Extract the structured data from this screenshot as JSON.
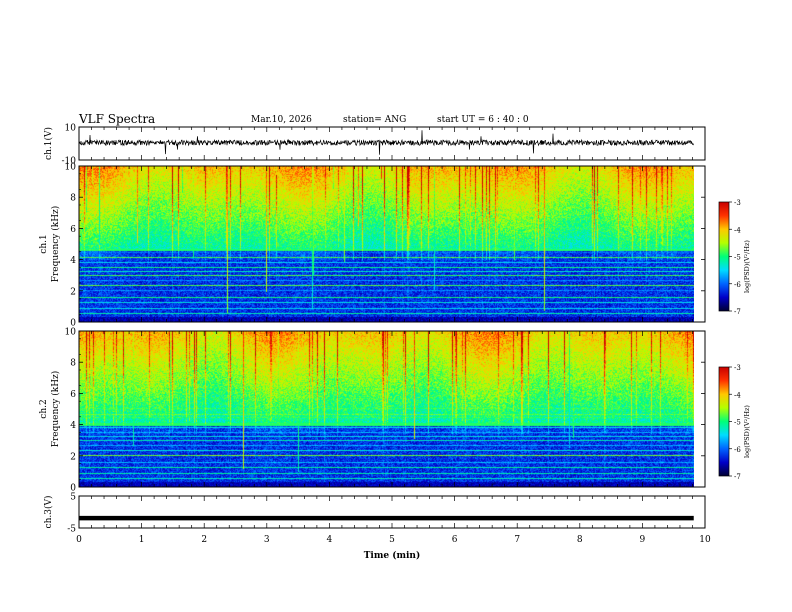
{
  "header": {
    "title": "VLF Spectra",
    "date": "Mar.10, 2026",
    "station": "station= ANG",
    "start_time": "start  UT =   6 : 40 : 0"
  },
  "chart_data": [
    {
      "type": "line",
      "panel": "ch1-waveform",
      "ylabel": "ch.1(V)",
      "ylim": [
        -10,
        10
      ],
      "yticks": [
        "10",
        "-10"
      ],
      "xlim": [
        0,
        10
      ],
      "baseline": 0.5,
      "series_color": "#000000"
    },
    {
      "type": "heatmap",
      "panel": "ch1-spectrogram",
      "ylabel_line1": "ch.1",
      "ylabel_line2": "Frequency (kHz)",
      "ylim": [
        0,
        10
      ],
      "yticks": [
        "0",
        "2",
        "4",
        "6",
        "8",
        "10"
      ],
      "xlim": [
        0,
        10
      ],
      "colorbar": {
        "label": "log(PSD)(V²/Hz)",
        "range": [
          -7,
          -3
        ],
        "ticks": [
          "-3",
          "-4",
          "-5",
          "-6",
          "-7"
        ],
        "colors": [
          "#000033",
          "#0000c8",
          "#0064ff",
          "#00dcff",
          "#00ff78",
          "#b4ff00",
          "#ffc800",
          "#ff3200",
          "#c80000",
          "#ffffff"
        ]
      }
    },
    {
      "type": "heatmap",
      "panel": "ch2-spectrogram",
      "ylabel_line1": "ch.2",
      "ylabel_line2": "Frequency (kHz)",
      "ylim": [
        0,
        10
      ],
      "yticks": [
        "0",
        "2",
        "4",
        "6",
        "8",
        "10"
      ],
      "xlim": [
        0,
        10
      ],
      "colorbar": {
        "label": "log(PSD)(V²/Hz)",
        "range": [
          -7,
          -3
        ],
        "ticks": [
          "-3",
          "-4",
          "-5",
          "-6",
          "-7"
        ],
        "colors": [
          "#000033",
          "#0000c8",
          "#0064ff",
          "#00dcff",
          "#00ff78",
          "#b4ff00",
          "#ffc800",
          "#ff3200",
          "#c80000",
          "#ffffff"
        ]
      }
    },
    {
      "type": "line",
      "panel": "ch3-waveform",
      "ylabel": "ch.3(V)",
      "ylim": [
        -5,
        5
      ],
      "yticks": [
        "5",
        "-5"
      ],
      "xlim": [
        0,
        10
      ],
      "constant_value": -1.9,
      "series_color": "#000000"
    }
  ],
  "xaxis": {
    "label": "Time  (min)",
    "range": [
      0,
      10
    ],
    "data_end": 9.82,
    "ticks": [
      "0",
      "1",
      "2",
      "3",
      "4",
      "5",
      "6",
      "7",
      "8",
      "9",
      "10"
    ]
  }
}
